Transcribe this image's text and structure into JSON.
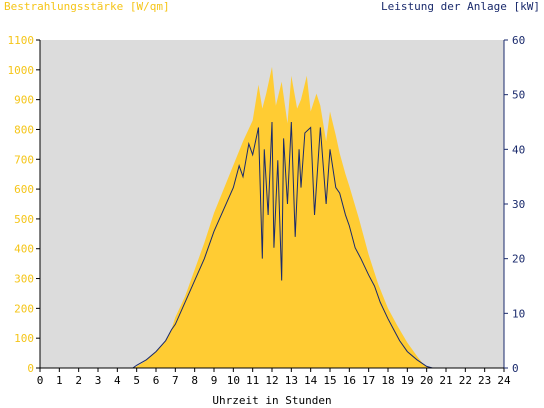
{
  "colors": {
    "background": "#ffffff",
    "plot_background": "#dcdcdc",
    "irradiance": "#ffcc33",
    "irradiance_axis": "#f5c518",
    "power": "#1a2a6c",
    "axis": "#000000"
  },
  "chart_data": {
    "type": "area",
    "title_left": "Bestrahlungsstärke [W/qm]",
    "title_right": "Leistung der Anlage [kW]",
    "xlabel": "Uhrzeit in Stunden",
    "xlim": [
      0,
      24
    ],
    "x_ticks": [
      "0",
      "1",
      "2",
      "3",
      "4",
      "5",
      "6",
      "7",
      "8",
      "9",
      "10",
      "11",
      "12",
      "13",
      "14",
      "15",
      "16",
      "17",
      "18",
      "19",
      "20",
      "21",
      "22",
      "23",
      "24"
    ],
    "y_left": {
      "lim": [
        0,
        1100
      ],
      "ticks": [
        "0",
        "100",
        "200",
        "300",
        "400",
        "500",
        "600",
        "700",
        "800",
        "900",
        "1000",
        "1100"
      ]
    },
    "y_right": {
      "lim": [
        0,
        60
      ],
      "ticks": [
        "0",
        "10",
        "20",
        "30",
        "40",
        "50",
        "60"
      ]
    },
    "grid": false,
    "series": [
      {
        "axis": "left",
        "type": "area",
        "x": [
          0,
          4.8,
          5.0,
          5.5,
          6.0,
          6.5,
          6.8,
          7.0,
          7.5,
          8.0,
          8.5,
          9.0,
          9.5,
          10.0,
          10.5,
          11.0,
          11.3,
          11.5,
          11.7,
          12.0,
          12.2,
          12.5,
          12.8,
          13.0,
          13.3,
          13.5,
          13.8,
          14.0,
          14.3,
          14.5,
          14.8,
          15.0,
          15.3,
          15.5,
          15.8,
          16.0,
          16.5,
          17.0,
          17.5,
          18.0,
          18.5,
          19.0,
          19.5,
          19.8,
          20.0,
          20.3,
          24
        ],
        "y": [
          0,
          0,
          5,
          25,
          55,
          90,
          130,
          170,
          240,
          330,
          420,
          520,
          600,
          680,
          760,
          830,
          950,
          870,
          920,
          1010,
          880,
          960,
          820,
          980,
          870,
          900,
          980,
          860,
          920,
          880,
          760,
          860,
          780,
          720,
          650,
          610,
          500,
          380,
          280,
          200,
          140,
          85,
          40,
          15,
          5,
          0,
          0
        ]
      },
      {
        "axis": "right",
        "type": "line",
        "x": [
          0,
          4.8,
          5.0,
          5.5,
          6.0,
          6.5,
          6.8,
          7.0,
          7.5,
          8.0,
          8.5,
          9.0,
          9.5,
          10.0,
          10.3,
          10.5,
          10.8,
          11.0,
          11.3,
          11.5,
          11.6,
          11.8,
          12.0,
          12.1,
          12.3,
          12.5,
          12.6,
          12.8,
          13.0,
          13.2,
          13.4,
          13.5,
          13.7,
          14.0,
          14.2,
          14.5,
          14.8,
          15.0,
          15.3,
          15.5,
          15.8,
          16.0,
          16.3,
          16.6,
          17.0,
          17.3,
          17.6,
          18.0,
          18.3,
          18.6,
          19.0,
          19.5,
          20.0,
          20.3,
          24
        ],
        "y": [
          0,
          0,
          0.5,
          1.5,
          3,
          5,
          7,
          8,
          12,
          16,
          20,
          25,
          29,
          33,
          37,
          35,
          41,
          39,
          44,
          20,
          40,
          28,
          45,
          22,
          38,
          16,
          42,
          30,
          45,
          24,
          40,
          33,
          43,
          44,
          28,
          44,
          30,
          40,
          33,
          32,
          28,
          26,
          22,
          20,
          17,
          15,
          12,
          9,
          7,
          5,
          3,
          1.5,
          0.3,
          0,
          0
        ]
      }
    ]
  }
}
